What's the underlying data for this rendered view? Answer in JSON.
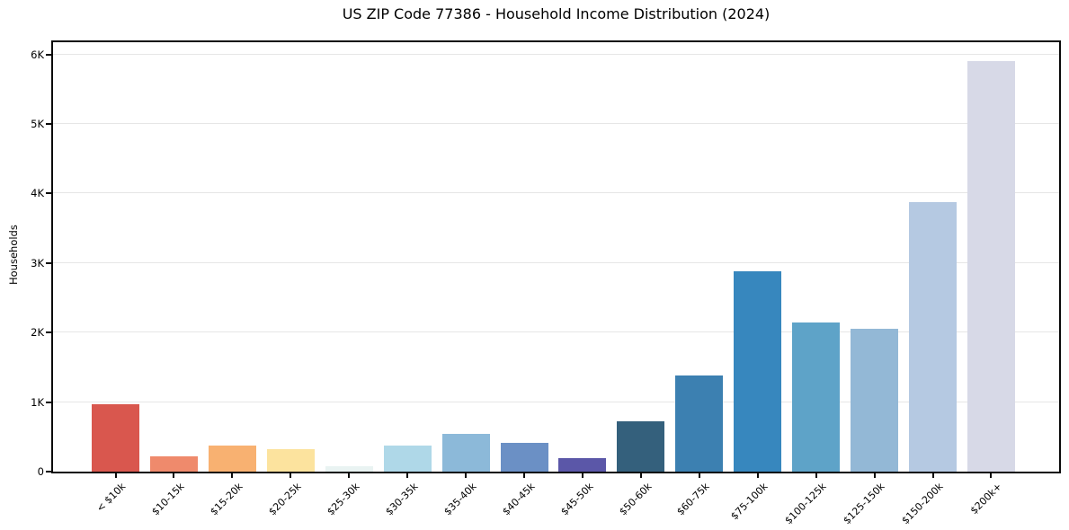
{
  "title": "US ZIP Code 77386 - Household Income Distribution (2024)",
  "chart_data": {
    "type": "bar",
    "title": "US ZIP Code 77386 - Household Income Distribution (2024)",
    "xlabel": "",
    "ylabel": "Households",
    "categories": [
      "< $10k",
      "$10-15k",
      "$15-20k",
      "$20-25k",
      "$25-30k",
      "$30-35k",
      "$35-40k",
      "$40-45k",
      "$45-50k",
      "$50-60k",
      "$60-75k",
      "$75-100k",
      "$100-125k",
      "$125-150k",
      "$150-200k",
      "$200k+"
    ],
    "values": [
      970,
      225,
      370,
      325,
      75,
      370,
      540,
      415,
      200,
      730,
      1380,
      2880,
      2145,
      2055,
      3870,
      5900
    ],
    "bar_colors": [
      "#d9574e",
      "#ef8a6c",
      "#f8b171",
      "#fce39e",
      "#e9f3f2",
      "#afd8e8",
      "#8cb9d9",
      "#6b90c5",
      "#5b57a8",
      "#34607c",
      "#3c80b1",
      "#3787be",
      "#5ea3c8",
      "#93b8d6",
      "#b5c9e2",
      "#d7d9e7"
    ],
    "y_ticks": [
      "0",
      "1K",
      "2K",
      "3K",
      "4K",
      "5K",
      "6K"
    ],
    "y_tick_values": [
      0,
      1000,
      2000,
      3000,
      4000,
      5000,
      6000
    ],
    "ylim": [
      0,
      6200
    ],
    "grid": "horizontal-only",
    "legend": "none",
    "background_color": "#ffffff",
    "axis_color": "#0a0a0a",
    "gridline_color": "#e6e6e6",
    "x_tick_rotation_deg": 45
  }
}
